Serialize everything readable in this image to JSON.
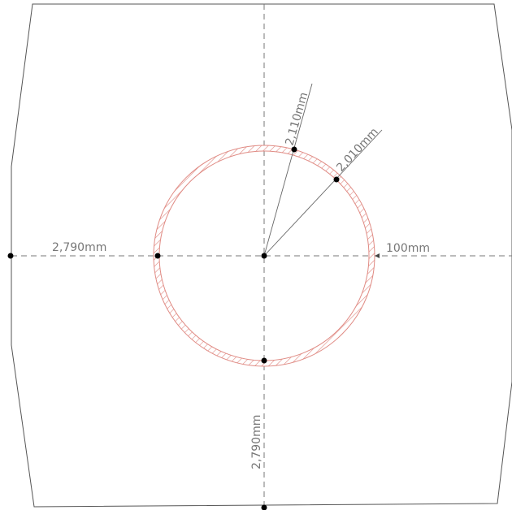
{
  "drawing": {
    "dimensions": {
      "left_clearance": "2,790mm",
      "bottom_clearance": "2,790mm",
      "outer_radius": "2,110mm",
      "inner_radius": "2,010mm",
      "wall_thickness": "100mm"
    },
    "colors": {
      "section_hatch": "#e08b84",
      "lines": "#555555",
      "points": "#000000"
    }
  }
}
